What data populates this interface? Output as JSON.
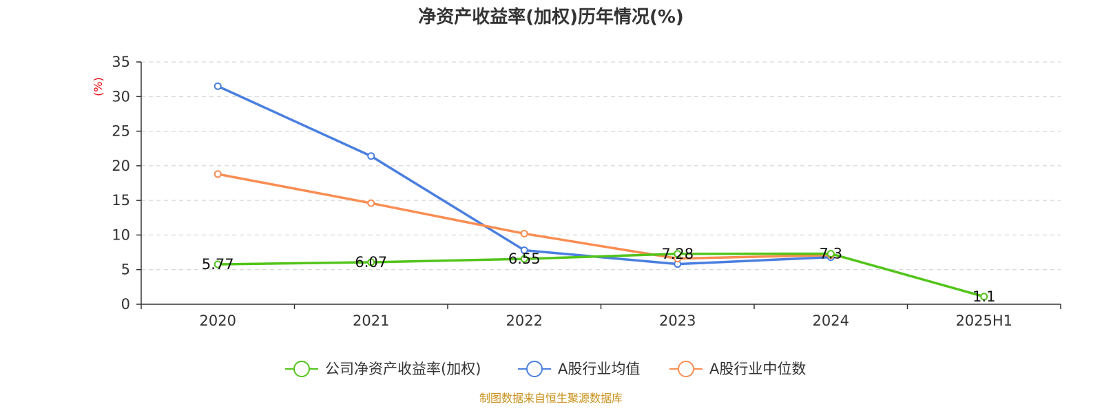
{
  "chart_data": {
    "type": "line",
    "title": "净资产收益率(加权)历年情况(%)",
    "ylabel": "(%)",
    "xlabel": "",
    "categories": [
      "2020",
      "2021",
      "2022",
      "2023",
      "2024",
      "2025H1"
    ],
    "ylim": [
      0,
      35
    ],
    "yticks": [
      0,
      5,
      10,
      15,
      20,
      25,
      30,
      35
    ],
    "grid": true,
    "legend_position": "bottom",
    "series": [
      {
        "name": "公司净资产收益率(加权)",
        "color": "#52c41a",
        "values": [
          5.77,
          6.07,
          6.55,
          7.28,
          7.3,
          1.1
        ],
        "labels": [
          "5.77",
          "6.07",
          "6.55",
          "7.28",
          "7.3",
          "1.1"
        ]
      },
      {
        "name": "A股行业均值",
        "color": "#4a7fe0",
        "values": [
          31.5,
          21.4,
          7.8,
          5.8,
          6.8,
          null
        ]
      },
      {
        "name": "A股行业中位数",
        "color": "#f98d52",
        "values": [
          18.8,
          14.6,
          10.2,
          6.6,
          7.1,
          null
        ]
      }
    ],
    "source": "制图数据来自恒生聚源数据库"
  }
}
